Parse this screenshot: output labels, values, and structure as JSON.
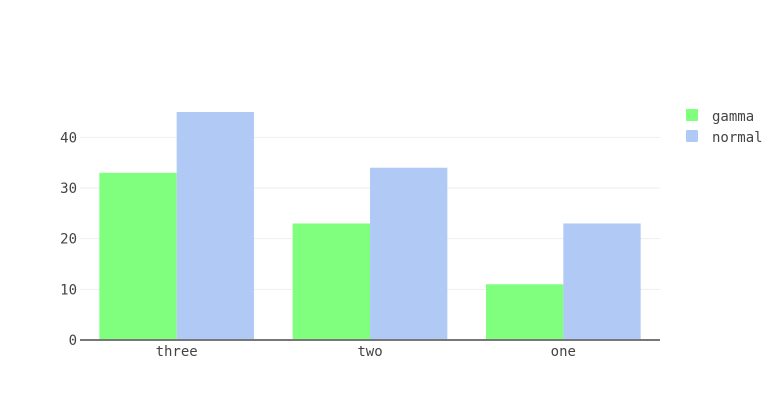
{
  "chart_data": {
    "type": "bar",
    "categories": [
      "three",
      "two",
      "one"
    ],
    "series": [
      {
        "name": "gamma",
        "values": [
          33,
          23,
          11
        ],
        "color": "#80ff7f"
      },
      {
        "name": "normal",
        "values": [
          45,
          34,
          23
        ],
        "color": "#b0c9f5"
      }
    ],
    "y_ticks": [
      "0",
      "10",
      "20",
      "30",
      "40"
    ],
    "ylim": [
      0,
      45
    ],
    "grid": true,
    "legend_position": "top-right",
    "colors": {
      "grid": "#eeeeee",
      "axis": "#777777",
      "text": "#444444"
    }
  }
}
